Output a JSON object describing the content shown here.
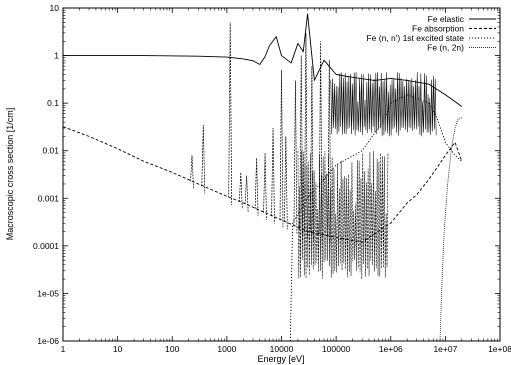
{
  "chart_data": {
    "type": "line",
    "title": "",
    "xlabel": "Energy [eV]",
    "ylabel": "Macroscopic cross section [1/cm]",
    "xscale": "log",
    "yscale": "log",
    "xlim": [
      1,
      100000000
    ],
    "ylim": [
      1e-06,
      10
    ],
    "grid": false,
    "legend_position": "top-right",
    "x_ticks": [
      "1",
      "10",
      "100",
      "1000",
      "10000",
      "100000",
      "1e+06",
      "1e+07",
      "1e+08"
    ],
    "y_ticks": [
      "1e-06",
      "1e-05",
      "0.0001",
      "0.001",
      "0.01",
      "0.1",
      "1",
      "10"
    ],
    "series": [
      {
        "name": "Fe elastic",
        "style": "solid",
        "points": [
          [
            1,
            1.0
          ],
          [
            30,
            1.0
          ],
          [
            300,
            0.97
          ],
          [
            1000,
            0.93
          ],
          [
            2000,
            0.85
          ],
          [
            3000,
            0.78
          ],
          [
            4000,
            0.65
          ],
          [
            5000,
            0.95
          ],
          [
            6000,
            1.6
          ],
          [
            8000,
            2.5
          ],
          [
            10000,
            1.0
          ],
          [
            15000,
            0.7
          ],
          [
            20000,
            1.8
          ],
          [
            25000,
            1.2
          ],
          [
            30000,
            7.5
          ],
          [
            40000,
            0.3
          ],
          [
            60000,
            0.8
          ],
          [
            100000,
            0.4
          ],
          [
            200000,
            0.35
          ],
          [
            500000,
            0.3
          ],
          [
            1000000,
            0.33
          ],
          [
            2000000,
            0.3
          ],
          [
            5000000,
            0.25
          ],
          [
            10000000,
            0.15
          ],
          [
            20000000,
            0.085
          ]
        ]
      },
      {
        "name": "Fe absorption",
        "style": "dashed",
        "points": [
          [
            1,
            0.032
          ],
          [
            3,
            0.02
          ],
          [
            10,
            0.011
          ],
          [
            30,
            0.006
          ],
          [
            100,
            0.0035
          ],
          [
            300,
            0.002
          ],
          [
            1000,
            0.0011
          ],
          [
            2000,
            0.0008
          ],
          [
            5000,
            0.0005
          ],
          [
            10000,
            0.00035
          ],
          [
            30000,
            0.0002
          ],
          [
            100000,
            0.00015
          ],
          [
            300000,
            0.00012
          ],
          [
            1000000,
            0.0003
          ],
          [
            2000000,
            0.0008
          ],
          [
            3000000,
            0.0012
          ],
          [
            5000000,
            0.0025
          ],
          [
            10000000,
            0.008
          ],
          [
            15000000,
            0.015
          ],
          [
            20000000,
            0.006
          ]
        ]
      },
      {
        "name": "Fe (n, n') 1st excited state",
        "style": "dotted",
        "points": [
          [
            14500,
            1e-06
          ],
          [
            16000,
            0.0003
          ],
          [
            30000,
            0.001
          ],
          [
            100000,
            0.005
          ],
          [
            300000,
            0.01
          ],
          [
            800000,
            0.05
          ],
          [
            1000000,
            0.1
          ],
          [
            2000000,
            0.15
          ],
          [
            5000000,
            0.1
          ],
          [
            7000000,
            0.05
          ],
          [
            10000000,
            0.015
          ],
          [
            15000000,
            0.008
          ],
          [
            20000000,
            0.006
          ]
        ]
      },
      {
        "name": "Fe (n, 2n)",
        "style": "dotted-fine",
        "points": [
          [
            8000000,
            1e-06
          ],
          [
            8500000,
            1e-05
          ],
          [
            9500000,
            0.0002
          ],
          [
            11000000,
            0.002
          ],
          [
            13000000,
            0.012
          ],
          [
            15000000,
            0.03
          ],
          [
            17000000,
            0.045
          ],
          [
            20000000,
            0.05
          ]
        ]
      }
    ],
    "spike_bands": [
      {
        "series": "Fe elastic",
        "x_from": 80000,
        "x_to": 7000000,
        "low": 0.02,
        "high": 0.45
      },
      {
        "series": "Fe absorption",
        "x_from": 20000,
        "x_to": 900000,
        "low": 2e-05,
        "high": 0.01
      }
    ],
    "resonances": [
      {
        "series": "Fe absorption",
        "x": 230,
        "peak": 0.008
      },
      {
        "series": "Fe absorption",
        "x": 370,
        "peak": 0.035
      },
      {
        "series": "Fe absorption",
        "x": 1150,
        "peak": 5.0
      },
      {
        "series": "Fe absorption",
        "x": 1800,
        "peak": 0.0035
      },
      {
        "series": "Fe absorption",
        "x": 2300,
        "peak": 0.003
      },
      {
        "series": "Fe absorption",
        "x": 3500,
        "peak": 0.007
      },
      {
        "series": "Fe absorption",
        "x": 5000,
        "peak": 0.009
      },
      {
        "series": "Fe absorption",
        "x": 7000,
        "peak": 0.03
      },
      {
        "series": "Fe absorption",
        "x": 10000,
        "peak": 0.5
      },
      {
        "series": "Fe absorption",
        "x": 12000,
        "peak": 0.02
      },
      {
        "series": "Fe absorption",
        "x": 18000,
        "peak": 0.3
      },
      {
        "series": "Fe absorption",
        "x": 23000,
        "peak": 1.0
      },
      {
        "series": "Fe absorption",
        "x": 28000,
        "peak": 3.0
      },
      {
        "series": "Fe absorption",
        "x": 36000,
        "peak": 0.6
      },
      {
        "series": "Fe absorption",
        "x": 52000,
        "peak": 2.0
      },
      {
        "series": "Fe absorption",
        "x": 75000,
        "peak": 0.8
      }
    ]
  }
}
